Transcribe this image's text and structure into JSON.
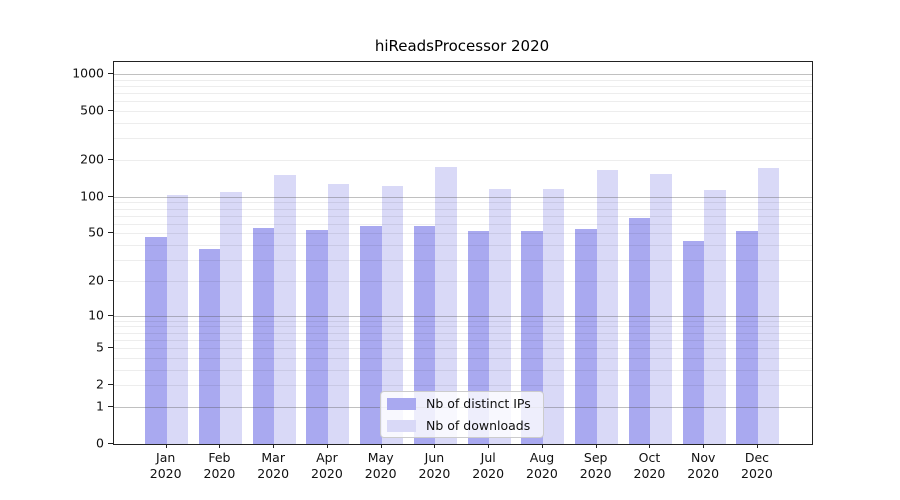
{
  "chart_data": {
    "type": "bar",
    "title": "hiReadsProcessor 2020",
    "xlabel": "",
    "ylabel": "",
    "year_line": "2020",
    "categories": [
      "Jan",
      "Feb",
      "Mar",
      "Apr",
      "May",
      "Jun",
      "Jul",
      "Aug",
      "Sep",
      "Oct",
      "Nov",
      "Dec"
    ],
    "series": [
      {
        "name": "Nb of distinct IPs",
        "color": "#a9a9f0",
        "values": [
          47,
          37,
          55,
          53,
          58,
          58,
          52,
          52,
          54,
          67,
          43,
          52
        ]
      },
      {
        "name": "Nb of downloads",
        "color": "#d9d9f7",
        "values": [
          104,
          110,
          151,
          127,
          123,
          176,
          117,
          117,
          167,
          153,
          114,
          173
        ]
      }
    ],
    "y_ticks": [
      0,
      1,
      2,
      5,
      10,
      20,
      50,
      100,
      200,
      500,
      1000
    ],
    "y_scale": "log1p",
    "ylim": [
      0,
      1300
    ],
    "grid": "horizontal: faint minor lines at 2-9 per decade, darker lines at 1/10/100/1000",
    "legend_position": "inside bottom-center"
  },
  "colors": {
    "major_grid": "rgba(80,80,80,0.36)",
    "minor_grid": "rgba(0,0,0,0.07)",
    "spine": "#222222",
    "background": "#ffffff"
  }
}
